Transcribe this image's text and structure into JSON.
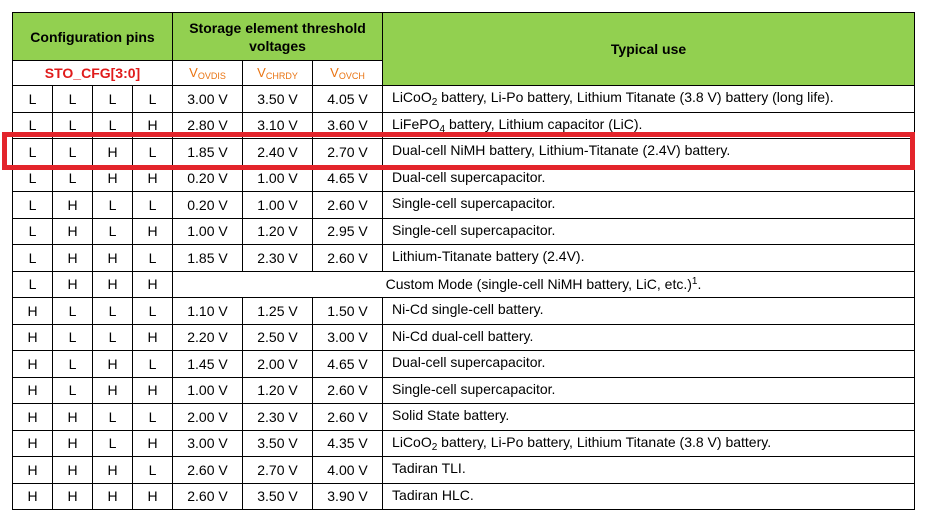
{
  "header": {
    "config_pins": "Configuration pins",
    "threshold": "Storage element threshold voltages",
    "typical_use": "Typical use",
    "sto_cfg": "STO_CFG[3:0]",
    "v_ovdis": {
      "main": "V",
      "sub": "OVDIS"
    },
    "v_chrdy": {
      "main": "V",
      "sub": "CHRDY"
    },
    "v_ovch": {
      "main": "V",
      "sub": "OVCH"
    }
  },
  "rows": [
    {
      "pins": [
        "L",
        "L",
        "L",
        "L"
      ],
      "v1": "3.00 V",
      "v2": "3.50 V",
      "v3": "4.05 V",
      "use": {
        "pre": "LiCoO",
        "sub": "2",
        "post": " battery, Li-Po battery, Lithium Titanate (3.8 V) battery (long life)."
      }
    },
    {
      "pins": [
        "L",
        "L",
        "L",
        "H"
      ],
      "v1": "2.80 V",
      "v2": "3.10 V",
      "v3": "3.60 V",
      "use": {
        "pre": "LiFePO",
        "sub": "4",
        "post": " battery, Lithium capacitor (LiC)."
      }
    },
    {
      "pins": [
        "L",
        "L",
        "H",
        "L"
      ],
      "v1": "1.85 V",
      "v2": "2.40 V",
      "v3": "2.70 V",
      "use": {
        "pre": "Dual-cell NiMH battery, Lithium-Titanate (2.4V) battery.",
        "sub": "",
        "post": ""
      }
    },
    {
      "pins": [
        "L",
        "L",
        "H",
        "H"
      ],
      "v1": "0.20 V",
      "v2": "1.00 V",
      "v3": "4.65 V",
      "use": {
        "pre": "Dual-cell supercapacitor.",
        "sub": "",
        "post": ""
      }
    },
    {
      "pins": [
        "L",
        "H",
        "L",
        "L"
      ],
      "v1": "0.20 V",
      "v2": "1.00 V",
      "v3": "2.60 V",
      "use": {
        "pre": "Single-cell supercapacitor.",
        "sub": "",
        "post": ""
      }
    },
    {
      "pins": [
        "L",
        "H",
        "L",
        "H"
      ],
      "v1": "1.00 V",
      "v2": "1.20 V",
      "v3": "2.95 V",
      "use": {
        "pre": "Single-cell supercapacitor.",
        "sub": "",
        "post": ""
      }
    },
    {
      "pins": [
        "L",
        "H",
        "H",
        "L"
      ],
      "v1": "1.85 V",
      "v2": "2.30 V",
      "v3": "2.60 V",
      "use": {
        "pre": "Lithium-Titanate battery (2.4V).",
        "sub": "",
        "post": ""
      }
    },
    {
      "pins": [
        "L",
        "H",
        "H",
        "H"
      ],
      "custom": true,
      "custom_text": "Custom Mode (single-cell NiMH battery, LiC, etc.)",
      "custom_sup": "1",
      "custom_tail": "."
    },
    {
      "pins": [
        "H",
        "L",
        "L",
        "L"
      ],
      "v1": "1.10 V",
      "v2": "1.25 V",
      "v3": "1.50 V",
      "use": {
        "pre": "Ni-Cd single-cell battery.",
        "sub": "",
        "post": ""
      }
    },
    {
      "pins": [
        "H",
        "L",
        "L",
        "H"
      ],
      "v1": "2.20 V",
      "v2": "2.50 V",
      "v3": "3.00 V",
      "use": {
        "pre": "Ni-Cd dual-cell battery.",
        "sub": "",
        "post": ""
      }
    },
    {
      "pins": [
        "H",
        "L",
        "H",
        "L"
      ],
      "v1": "1.45 V",
      "v2": "2.00 V",
      "v3": "4.65 V",
      "use": {
        "pre": "Dual-cell supercapacitor.",
        "sub": "",
        "post": ""
      }
    },
    {
      "pins": [
        "H",
        "L",
        "H",
        "H"
      ],
      "v1": "1.00 V",
      "v2": "1.20 V",
      "v3": "2.60 V",
      "use": {
        "pre": "Single-cell supercapacitor.",
        "sub": "",
        "post": ""
      }
    },
    {
      "pins": [
        "H",
        "H",
        "L",
        "L"
      ],
      "v1": "2.00 V",
      "v2": "2.30 V",
      "v3": "2.60 V",
      "use": {
        "pre": "Solid State battery.",
        "sub": "",
        "post": ""
      }
    },
    {
      "pins": [
        "H",
        "H",
        "L",
        "H"
      ],
      "v1": "3.00 V",
      "v2": "3.50 V",
      "v3": "4.35 V",
      "use": {
        "pre": "LiCoO",
        "sub": "2",
        "post": " battery, Li-Po battery, Lithium Titanate (3.8 V) battery."
      }
    },
    {
      "pins": [
        "H",
        "H",
        "H",
        "L"
      ],
      "v1": "2.60 V",
      "v2": "2.70 V",
      "v3": "4.00 V",
      "use": {
        "pre": "Tadiran TLI.",
        "sub": "",
        "post": ""
      }
    },
    {
      "pins": [
        "H",
        "H",
        "H",
        "H"
      ],
      "v1": "2.60 V",
      "v2": "3.50 V",
      "v3": "3.90 V",
      "use": {
        "pre": "Tadiran HLC.",
        "sub": "",
        "post": ""
      }
    }
  ],
  "highlight": {
    "row_index": 2,
    "color": "#e3242b"
  },
  "colors": {
    "header_bg": "#92d050",
    "sub_header_text": "#e97311",
    "sto_cfg_text": "#e01b1b"
  }
}
